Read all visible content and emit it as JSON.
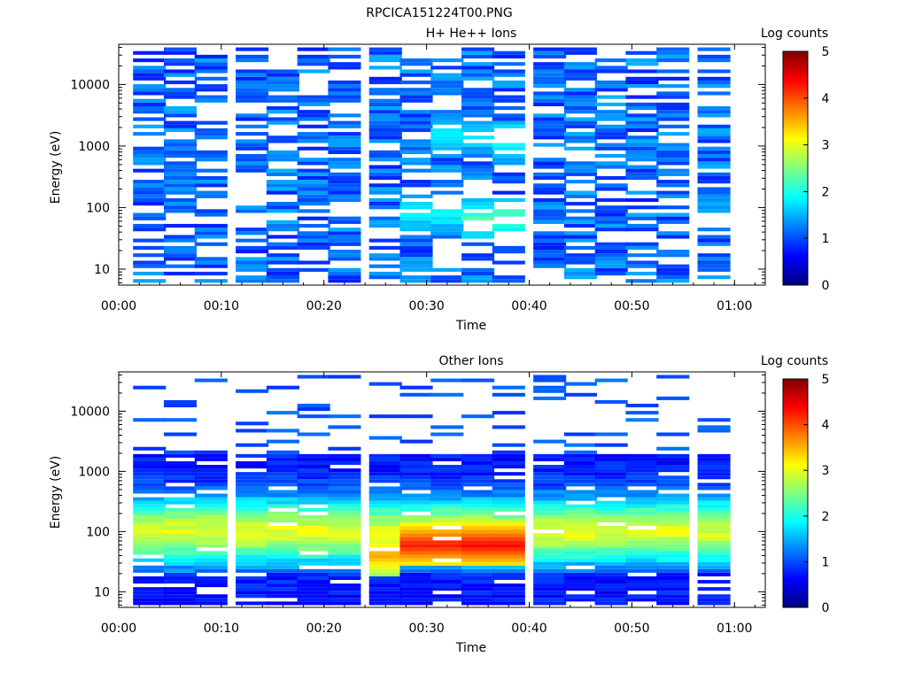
{
  "figure_title": "RPCICA151224T00.PNG",
  "chart_data": [
    {
      "type": "heatmap",
      "title": "H+ He++ Ions",
      "xlabel": "Time",
      "ylabel": "Energy (eV)",
      "x_ticks": [
        "00:00",
        "00:10",
        "00:20",
        "00:30",
        "00:40",
        "00:50",
        "01:00"
      ],
      "y_ticks": [
        "10",
        "100",
        "1000",
        "10000"
      ],
      "y_scale": "log",
      "xlim": [
        "00:00",
        "01:03"
      ],
      "ylim": [
        5.5,
        45000
      ],
      "colorbar": {
        "label": "Log counts",
        "ticks": [
          "0",
          "1",
          "2",
          "3",
          "4",
          "5"
        ],
        "range": [
          0,
          5
        ]
      },
      "time_bins": [
        "00:03",
        "00:06",
        "00:09",
        "00:13",
        "00:16",
        "00:19",
        "00:22",
        "00:26",
        "00:29",
        "00:32",
        "00:35",
        "00:38",
        "00:42",
        "00:45",
        "00:48",
        "00:51",
        "00:54",
        "00:58"
      ],
      "energy_range_eV": [
        6,
        40000
      ],
      "energy_bins": 64,
      "notes_shape": {
        "low_band_eV": [
          25,
          3000
        ],
        "peak_values": [
          {
            "time": "00:30",
            "energy_eV": 80,
            "log_counts": 2.1
          },
          {
            "time": "00:33",
            "energy_eV": 1500,
            "log_counts": 2.0
          },
          {
            "time": "00:39",
            "energy_eV": 1200,
            "log_counts": 2.3
          },
          {
            "time": "00:36",
            "energy_eV": 70,
            "log_counts": 2.5
          }
        ]
      }
    },
    {
      "type": "heatmap",
      "title": "Other Ions",
      "xlabel": "Time",
      "ylabel": "Energy (eV)",
      "x_ticks": [
        "00:00",
        "00:10",
        "00:20",
        "00:30",
        "00:40",
        "00:50",
        "01:00"
      ],
      "y_ticks": [
        "10",
        "100",
        "1000",
        "10000"
      ],
      "y_scale": "log",
      "xlim": [
        "00:00",
        "01:03"
      ],
      "ylim": [
        5.5,
        45000
      ],
      "colorbar": {
        "label": "Log counts",
        "ticks": [
          "0",
          "1",
          "2",
          "3",
          "4",
          "5"
        ],
        "range": [
          0,
          5
        ]
      },
      "time_bins": [
        "00:03",
        "00:06",
        "00:09",
        "00:13",
        "00:16",
        "00:19",
        "00:22",
        "00:26",
        "00:29",
        "00:32",
        "00:35",
        "00:38",
        "00:42",
        "00:45",
        "00:48",
        "00:51",
        "00:54",
        "00:58"
      ],
      "energy_range_eV": [
        6,
        40000
      ],
      "energy_bins": 64,
      "notes_shape": {
        "peak_values": [
          {
            "time": "00:30",
            "energy_eV": 60,
            "log_counts": 4.3
          },
          {
            "time": "00:36",
            "energy_eV": 60,
            "log_counts": 4.4
          },
          {
            "time": "00:26",
            "energy_eV": 40,
            "log_counts": 3.6
          }
        ]
      }
    }
  ]
}
